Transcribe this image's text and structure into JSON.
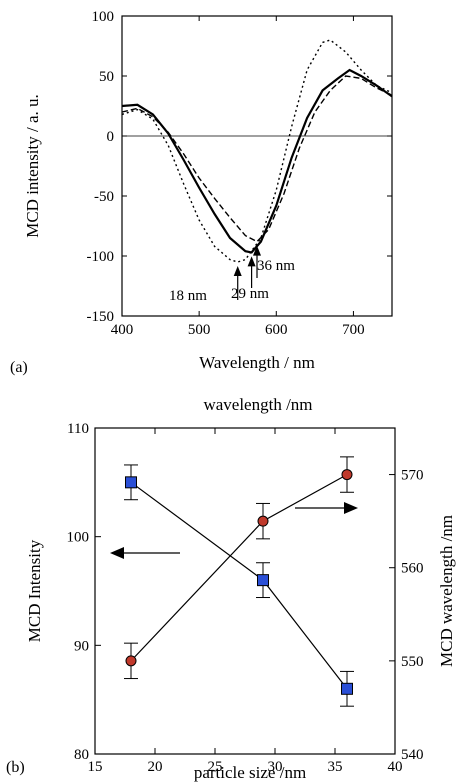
{
  "chart_data": [
    {
      "type": "line",
      "panel_label": "(a)",
      "title": "",
      "xlabel": "Wavelength / nm",
      "ylabel": "MCD intensity / a. u.",
      "xlim": [
        400,
        750
      ],
      "ylim": [
        -150,
        100
      ],
      "xticks": [
        "400",
        "500",
        "600",
        "700"
      ],
      "yticks": [
        "100",
        "50",
        "0",
        "-50",
        "-100",
        "-150"
      ],
      "zero_line": true,
      "series": [
        {
          "name": "18 nm",
          "style": "dotted",
          "x": [
            400,
            420,
            440,
            460,
            480,
            500,
            520,
            540,
            550,
            560,
            580,
            600,
            620,
            640,
            660,
            670,
            690,
            710,
            730,
            750
          ],
          "y": [
            18,
            22,
            14,
            -8,
            -40,
            -70,
            -92,
            -103,
            -105,
            -103,
            -85,
            -45,
            8,
            55,
            78,
            80,
            70,
            55,
            42,
            36
          ]
        },
        {
          "name": "29 nm",
          "style": "solid",
          "x": [
            400,
            420,
            440,
            460,
            480,
            500,
            520,
            540,
            560,
            568,
            580,
            600,
            620,
            640,
            660,
            680,
            695,
            710,
            730,
            750
          ],
          "y": [
            25,
            26,
            18,
            2,
            -20,
            -43,
            -65,
            -85,
            -96,
            -97,
            -88,
            -58,
            -18,
            15,
            38,
            48,
            55,
            50,
            42,
            33
          ]
        },
        {
          "name": "36 nm",
          "style": "dashed",
          "x": [
            400,
            420,
            440,
            460,
            480,
            500,
            520,
            540,
            560,
            575,
            590,
            610,
            630,
            650,
            670,
            690,
            710,
            730,
            750
          ],
          "y": [
            20,
            23,
            16,
            3,
            -15,
            -35,
            -52,
            -68,
            -83,
            -88,
            -78,
            -48,
            -10,
            20,
            38,
            50,
            48,
            40,
            34
          ]
        }
      ],
      "annotations": [
        {
          "text": "18 nm",
          "x": 550,
          "y": -105
        },
        {
          "text": "29 nm",
          "x": 568,
          "y": -97
        },
        {
          "text": "36 nm",
          "x": 575,
          "y": -88
        }
      ]
    },
    {
      "type": "scatter",
      "panel_label": "(b)",
      "title": "",
      "top_label": "wavelength /nm",
      "xlabel": "particle size /nm",
      "ylabel_left": "MCD Intensity",
      "ylabel_right": "MCD wavelength /nm",
      "xlim": [
        15,
        40
      ],
      "ylim_left": [
        80,
        110
      ],
      "ylim_right": [
        540,
        575
      ],
      "xticks": [
        "15",
        "20",
        "25",
        "30",
        "35",
        "40"
      ],
      "yticks_left": [
        "110",
        "100",
        "90",
        "80"
      ],
      "yticks_right": [
        "570",
        "560",
        "550",
        "540"
      ],
      "series": [
        {
          "name": "MCD Intensity",
          "axis": "left",
          "marker": "square",
          "color": "#2a4fd6",
          "x": [
            18,
            29,
            36
          ],
          "y": [
            105,
            96,
            86
          ],
          "error": [
            1.6,
            1.6,
            1.6
          ]
        },
        {
          "name": "MCD wavelength",
          "axis": "right",
          "marker": "circle",
          "color": "#c0392b",
          "x": [
            18,
            29,
            36
          ],
          "y": [
            550,
            565,
            570
          ],
          "error": [
            1.9,
            1.9,
            1.9
          ]
        }
      ]
    }
  ]
}
